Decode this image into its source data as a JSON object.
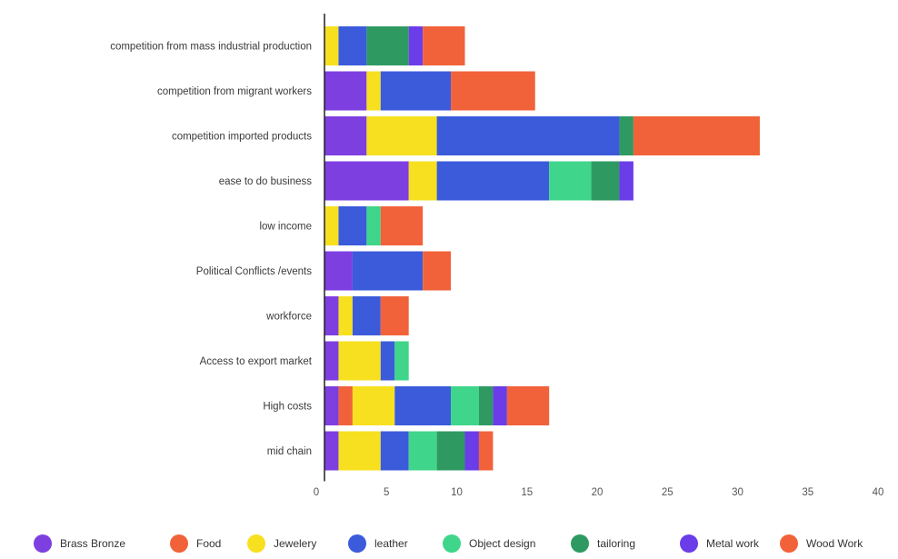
{
  "chart_data": {
    "type": "bar",
    "orientation": "horizontal",
    "stacked": true,
    "title": "",
    "xlabel": "",
    "ylabel": "",
    "xlim": [
      0,
      40
    ],
    "xticks": [
      "0",
      "5",
      "10",
      "15",
      "20",
      "25",
      "30",
      "35",
      "40"
    ],
    "grid": false,
    "legend_position": "bottom",
    "categories": [
      "competition from mass industrial production",
      "competition from migrant workers",
      "competition imported products",
      "ease to do business",
      "low income",
      "Political Conflicts /events",
      "workforce",
      "Access to export market",
      "High costs",
      "mid chain"
    ],
    "series": [
      {
        "name": "Brass Bronze",
        "color": "#7e3fe0",
        "values": [
          0,
          3,
          3,
          6,
          0,
          2,
          1,
          1,
          1,
          1
        ]
      },
      {
        "name": "Food",
        "color": "#f2623a",
        "values": [
          0,
          0,
          0,
          0,
          0,
          0,
          0,
          0,
          1,
          0
        ]
      },
      {
        "name": "Jewelery",
        "color": "#f7e01f",
        "values": [
          1,
          1,
          5,
          2,
          1,
          0,
          1,
          3,
          3,
          3
        ]
      },
      {
        "name": "leather",
        "color": "#3b5bdb",
        "values": [
          2,
          5,
          13,
          8,
          2,
          5,
          2,
          1,
          4,
          2
        ]
      },
      {
        "name": "Object design",
        "color": "#3fd58a",
        "values": [
          0,
          0,
          0,
          3,
          1,
          0,
          0,
          1,
          2,
          2
        ]
      },
      {
        "name": "tailoring",
        "color": "#2e9a62",
        "values": [
          3,
          0,
          1,
          2,
          0,
          0,
          0,
          0,
          1,
          2
        ]
      },
      {
        "name": "Metal work",
        "color": "#6a3de8",
        "values": [
          1,
          0,
          0,
          1,
          0,
          0,
          0,
          0,
          1,
          1
        ]
      },
      {
        "name": "Wood Work",
        "color": "#f2623a",
        "values": [
          3,
          6,
          9,
          0,
          3,
          2,
          2,
          0,
          3,
          1
        ]
      }
    ]
  }
}
